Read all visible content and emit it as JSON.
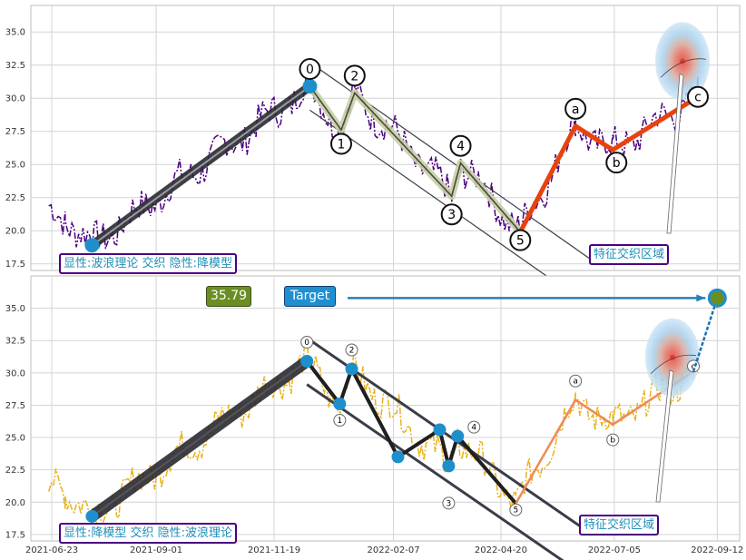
{
  "colors": {
    "top_price": "#4b0082",
    "bottom_price": "#e8b21c",
    "impulse_band": "#2a2a33",
    "correction_top": "#e8420d",
    "correction_bottom": "#ee8a55",
    "node_blue": "#1f8fcc",
    "label_cyan": "#1f8fb8",
    "box_border": "#4b0082",
    "price_badge": "#6b8e23",
    "target_badge": "#1f8fd0"
  },
  "chart_data": [
    {
      "type": "line",
      "panel": "top",
      "ylim": [
        17.0,
        37.0
      ],
      "yticks": [
        "17.5",
        "20.0",
        "22.5",
        "25.0",
        "27.5",
        "30.0",
        "32.5",
        "35.0"
      ],
      "grid": true,
      "wave_points": [
        {
          "label": "",
          "date": "2021-07-20",
          "value": 18.9
        },
        {
          "label": "0",
          "date": "2021-12-13",
          "value": 30.9
        },
        {
          "label": "1",
          "date": "2022-01-03",
          "value": 27.6
        },
        {
          "label": "2",
          "date": "2022-01-12",
          "value": 30.4
        },
        {
          "label": "3",
          "date": "2022-03-18",
          "value": 22.6
        },
        {
          "label": "4",
          "date": "2022-03-24",
          "value": 25.1
        },
        {
          "label": "5",
          "date": "2022-05-03",
          "value": 19.9
        },
        {
          "label": "a",
          "date": "2022-06-09",
          "value": 27.9
        },
        {
          "label": "b",
          "date": "2022-07-04",
          "value": 26.1
        },
        {
          "label": "c",
          "date": "2022-08-30",
          "value": 30.1
        }
      ],
      "box_label": "显性:波浪理论 交织 隐性:降模型",
      "zone_label": "特征交织区域"
    },
    {
      "type": "line",
      "panel": "bottom",
      "ylim": [
        17.0,
        37.5
      ],
      "yticks": [
        "17.5",
        "20.0",
        "22.5",
        "25.0",
        "27.5",
        "30.0",
        "32.5",
        "35.0"
      ],
      "xticks": [
        "2021-06-23",
        "2021-09-01",
        "2021-11-19",
        "2022-02-07",
        "2022-04-20",
        "2022-07-05",
        "2022-09-12"
      ],
      "grid": true,
      "wave_points": [
        {
          "label": "",
          "date": "2021-07-20",
          "value": 18.9
        },
        {
          "label": "0",
          "date": "2021-12-11",
          "value": 30.9
        },
        {
          "label": "1",
          "date": "2022-01-02",
          "value": 27.6
        },
        {
          "label": "2",
          "date": "2022-01-10",
          "value": 30.3
        },
        {
          "label": "",
          "date": "2022-02-10",
          "value": 23.5
        },
        {
          "label": "",
          "date": "2022-03-10",
          "value": 25.6
        },
        {
          "label": "3",
          "date": "2022-03-16",
          "value": 22.8
        },
        {
          "label": "4",
          "date": "2022-03-22",
          "value": 25.1
        },
        {
          "label": "5",
          "date": "2022-04-30",
          "value": 19.9
        },
        {
          "label": "a",
          "date": "2022-06-09",
          "value": 27.9
        },
        {
          "label": "b",
          "date": "2022-07-04",
          "value": 26.0
        },
        {
          "label": "c",
          "date": "2022-08-27",
          "value": 30.1
        }
      ],
      "target": {
        "date": "2022-09-12",
        "value": 35.79
      },
      "price_badge": "35.79",
      "target_label": "Target",
      "box_label": "显性:降模型 交织 隐性:波浪理论",
      "zone_label": "特征交织区域"
    }
  ]
}
